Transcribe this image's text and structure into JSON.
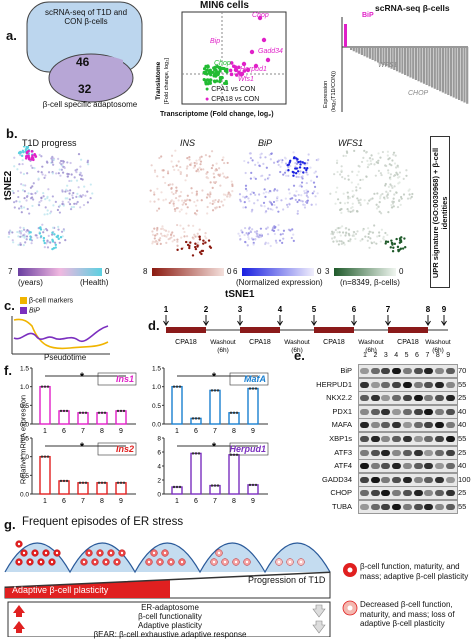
{
  "panels": {
    "a": "a.",
    "b": "b.",
    "c": "c.",
    "d": "d.",
    "e": "e.",
    "f": "f.",
    "g": "g."
  },
  "venn": {
    "big_text": "scRNA-seq of T1D and CON β-cells",
    "n1": "46",
    "n2": "32",
    "caption": "β-cell specific adaptosome"
  },
  "min6": {
    "title": "MIN6 cells",
    "ylabel": "Translatome [Fold change, log₂]",
    "xlabel": "Transcriptome (Fold change, log₂)",
    "genes": [
      "Chop",
      "Gadd34",
      "Bip",
      "Herpud1",
      "Wfs1",
      "Chop"
    ],
    "legend": [
      {
        "name": "CPA1 vs CON",
        "color": "#22bb33"
      },
      {
        "name": "CPA18 vs CON",
        "color": "#e020c8"
      }
    ]
  },
  "scrna": {
    "title": "scRNA-seq β-cells",
    "ylabel": "Expression (log₂(T1D/CON))",
    "labels": [
      "BiP",
      "WFS1",
      "CHOP"
    ]
  },
  "tsne": {
    "titles": [
      "T1D progress",
      "INS",
      "BiP",
      "WFS1"
    ],
    "ylabel": "tSNE2",
    "xlabel": "tSNE1",
    "scale1": {
      "left": "7",
      "right": "0",
      "sub_left": "(years)",
      "sub_right": "(Health)"
    },
    "scale2": {
      "left": "8",
      "right": "0"
    },
    "scale3": {
      "left": "6",
      "right": "0",
      "sub": "(Normalized expression)"
    },
    "scale4": {
      "left": "3",
      "right": "0",
      "sub": "(n=8349, β-cells)"
    },
    "side": "UPR signature (GO:0030968) + β-cell identities"
  },
  "pseudo": {
    "legend": [
      "β-cell markers",
      "BiP"
    ],
    "xlabel": "Pseudotime",
    "colors": [
      "#f0b400",
      "#7b2fbf"
    ]
  },
  "timeline": {
    "numbers": [
      "1",
      "2",
      "3",
      "4",
      "5",
      "6",
      "7",
      "8",
      "9"
    ],
    "cpa": "CPA18",
    "washout": "Washout",
    "hours": "(6h)"
  },
  "westernblot": {
    "lanes": [
      "1",
      "2",
      "3",
      "4",
      "5",
      "6",
      "7",
      "8",
      "9"
    ],
    "rows": [
      {
        "name": "BiP",
        "mw": "70"
      },
      {
        "name": "HERPUD1",
        "mw": "55"
      },
      {
        "name": "NKX2.2",
        "mw": "25"
      },
      {
        "name": "PDX1",
        "mw": "40"
      },
      {
        "name": "MAFA",
        "mw": "40"
      },
      {
        "name": "XBP1s",
        "mw": "55"
      },
      {
        "name": "ATF3",
        "mw": "25"
      },
      {
        "name": "ATF4",
        "mw": "40"
      },
      {
        "name": "GADD34",
        "mw": "100"
      },
      {
        "name": "CHOP",
        "mw": "25"
      },
      {
        "name": "TUBA",
        "mw": "55"
      }
    ]
  },
  "qpcr": {
    "ylabel": "Relative mRNA expression",
    "x": [
      "1",
      "6",
      "7",
      "8",
      "9"
    ],
    "star": "*",
    "charts": [
      {
        "gene": "Ins1",
        "color": "#e020c8",
        "values": [
          1.0,
          0.35,
          0.3,
          0.3,
          0.35
        ],
        "yticks": [
          "1.5",
          "1.0",
          "0.5",
          "0.0"
        ],
        "ymax": 1.5
      },
      {
        "gene": "MafA",
        "color": "#1a7fd0",
        "values": [
          1.0,
          0.15,
          0.9,
          0.3,
          0.95
        ],
        "yticks": [
          "1.5",
          "1.0",
          "0.5",
          "0.0"
        ],
        "ymax": 1.5
      },
      {
        "gene": "Ins2",
        "color": "#e02020",
        "values": [
          1.0,
          0.35,
          0.3,
          0.3,
          0.3
        ],
        "yticks": [
          "1.5",
          "1.0",
          "0.5",
          "0.0"
        ],
        "ymax": 1.5
      },
      {
        "gene": "Herpud1",
        "color": "#7b2fbf",
        "values": [
          1.0,
          5.8,
          1.2,
          5.6,
          1.3
        ],
        "yticks": [
          "8",
          "6",
          "4",
          "2",
          "0"
        ],
        "ymax": 8
      }
    ]
  },
  "g": {
    "title": "Frequent episodes of ER stress",
    "progression": "Progression of T1D",
    "plasticity": "Adaptive β-cell plasticity",
    "list": [
      "ER-adaptosome",
      "β-cell functionality",
      "Adaptive plasticity",
      "βEAR: β-cell exhaustive adaptive response"
    ],
    "legend1": "β-cell function, maturity, and mass; adaptive β-cell plasticity",
    "legend2": "Decreased β-cell function, maturity, and mass; loss of adaptive β-cell plasticity"
  }
}
